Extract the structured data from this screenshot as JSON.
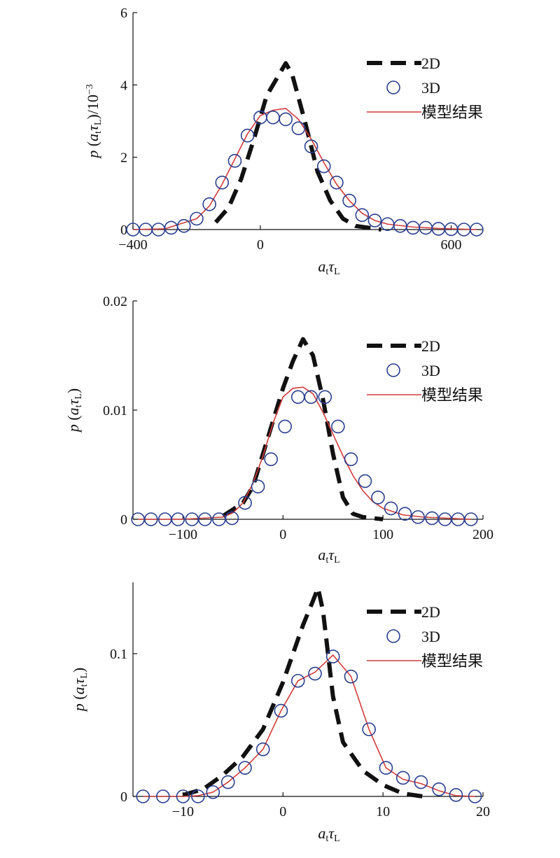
{
  "chart_data": [
    {
      "type": "line",
      "title": "",
      "xlabel": "a_t τ_L",
      "ylabel": "p (a_t τ_L)/10^-3",
      "xlim": [
        -400,
        700
      ],
      "ylim": [
        0,
        6
      ],
      "xticks": [
        -400,
        0,
        600
      ],
      "xtick_labels": [
        "−400",
        "0",
        "600"
      ],
      "yticks": [
        0,
        2,
        4,
        6
      ],
      "ytick_labels": [
        "0",
        "2",
        "4",
        "6"
      ],
      "legend_position": "top-right",
      "series": [
        {
          "name": "2D",
          "style": "dashed",
          "color": "#111111",
          "x": [
            -140,
            -100,
            -60,
            -20,
            20,
            60,
            80,
            100,
            140,
            180,
            220,
            260,
            300,
            340,
            380
          ],
          "y": [
            0.2,
            0.6,
            1.4,
            2.5,
            3.7,
            4.3,
            4.6,
            4.3,
            3.0,
            1.6,
            0.8,
            0.3,
            0.1,
            0.05,
            0.0
          ]
        },
        {
          "name": "3D",
          "style": "circles",
          "color": "#2a3f8f",
          "x": [
            -400,
            -360,
            -320,
            -280,
            -240,
            -200,
            -160,
            -120,
            -80,
            -40,
            0,
            40,
            80,
            120,
            160,
            200,
            240,
            280,
            320,
            360,
            400,
            440,
            480,
            520,
            560,
            600,
            640,
            680
          ],
          "y": [
            0,
            0,
            0,
            0.05,
            0.1,
            0.3,
            0.7,
            1.3,
            1.9,
            2.6,
            3.1,
            3.1,
            3.05,
            2.8,
            2.3,
            1.75,
            1.3,
            0.8,
            0.4,
            0.25,
            0.15,
            0.1,
            0.05,
            0.05,
            0.02,
            0.01,
            0,
            0
          ]
        },
        {
          "name": "模型结果",
          "style": "solid",
          "color": "#d23a3a",
          "x": [
            -400,
            -300,
            -200,
            -160,
            -120,
            -80,
            -40,
            0,
            40,
            80,
            120,
            160,
            200,
            240,
            280,
            320,
            360,
            400,
            480,
            560,
            680
          ],
          "y": [
            0,
            0.02,
            0.3,
            0.65,
            1.25,
            1.95,
            2.65,
            3.15,
            3.3,
            3.35,
            3.05,
            2.5,
            1.85,
            1.25,
            0.8,
            0.45,
            0.25,
            0.15,
            0.07,
            0.03,
            0.0
          ]
        }
      ]
    },
    {
      "type": "line",
      "title": "",
      "xlabel": "a_t τ_L",
      "ylabel": "p (a_t τ_L)",
      "xlim": [
        -150,
        200
      ],
      "ylim": [
        0,
        0.02
      ],
      "xticks": [
        -100,
        0,
        100,
        200
      ],
      "xtick_labels": [
        "−100",
        "0",
        "100",
        "200"
      ],
      "yticks": [
        0,
        0.01,
        0.02
      ],
      "ytick_labels": [
        "0",
        "0.01",
        "0.02"
      ],
      "legend_position": "top-right",
      "series": [
        {
          "name": "2D",
          "style": "dashed",
          "color": "#111111",
          "x": [
            -60,
            -40,
            -30,
            -20,
            -10,
            0,
            10,
            20,
            30,
            40,
            50,
            60,
            70,
            80,
            90,
            100
          ],
          "y": [
            0.0003,
            0.0015,
            0.003,
            0.006,
            0.009,
            0.012,
            0.0145,
            0.0165,
            0.015,
            0.011,
            0.006,
            0.002,
            0.0005,
            0.0002,
            0.0001,
            0.0
          ]
        },
        {
          "name": "3D",
          "style": "circles",
          "color": "#2a3f8f",
          "x": [
            -145,
            -132,
            -118,
            -105,
            -91,
            -78,
            -64,
            -51,
            -38,
            -25,
            -12,
            2,
            15,
            28,
            42,
            55,
            68,
            82,
            95,
            108,
            122,
            135,
            149,
            162,
            175,
            188
          ],
          "y": [
            0,
            0,
            0,
            0,
            0,
            0,
            0,
            0.0001,
            0.0015,
            0.003,
            0.0055,
            0.0085,
            0.0112,
            0.0112,
            0.0112,
            0.0085,
            0.0055,
            0.0035,
            0.002,
            0.001,
            0.0005,
            0.0002,
            0.0001,
            0,
            0,
            0
          ]
        },
        {
          "name": "模型结果",
          "style": "solid",
          "color": "#d23a3a",
          "x": [
            -145,
            -100,
            -60,
            -50,
            -40,
            -30,
            -20,
            -10,
            0,
            10,
            20,
            30,
            40,
            50,
            60,
            70,
            80,
            90,
            100,
            120,
            140,
            188
          ],
          "y": [
            0,
            0,
            0.0002,
            0.0006,
            0.0015,
            0.0033,
            0.0058,
            0.0088,
            0.0112,
            0.012,
            0.0121,
            0.0115,
            0.0098,
            0.0078,
            0.0058,
            0.004,
            0.0026,
            0.0016,
            0.001,
            0.0004,
            0.0002,
            0.0
          ]
        }
      ]
    },
    {
      "type": "line",
      "title": "",
      "xlabel": "a_t τ_L",
      "ylabel": "p (a_t τ_L)",
      "xlim": [
        -15,
        20
      ],
      "ylim": [
        0,
        0.15
      ],
      "xticks": [
        -10,
        0,
        10,
        20
      ],
      "xtick_labels": [
        "−10",
        "0",
        "10",
        "20"
      ],
      "yticks": [
        0,
        0.1
      ],
      "ytick_labels": [
        "0",
        "0.1"
      ],
      "legend_position": "top-right",
      "series": [
        {
          "name": "2D",
          "style": "dashed",
          "color": "#111111",
          "x": [
            -10,
            -8,
            -6,
            -4,
            -2,
            0,
            1,
            2,
            3,
            3.5,
            4,
            5,
            6,
            8,
            10,
            12,
            14
          ],
          "y": [
            0.001,
            0.005,
            0.015,
            0.028,
            0.047,
            0.08,
            0.1,
            0.12,
            0.137,
            0.146,
            0.13,
            0.07,
            0.038,
            0.018,
            0.008,
            0.002,
            0.0
          ]
        },
        {
          "name": "3D",
          "style": "circles",
          "color": "#2a3f8f",
          "x": [
            -14,
            -12,
            -10,
            -8.5,
            -7,
            -5.5,
            -3.8,
            -2,
            -0.2,
            1.5,
            3.2,
            5,
            6.8,
            8.6,
            10.3,
            12,
            13.8,
            15.6,
            17.3,
            19.2
          ],
          "y": [
            0,
            0,
            0,
            0,
            0.003,
            0.01,
            0.02,
            0.033,
            0.06,
            0.081,
            0.086,
            0.098,
            0.084,
            0.047,
            0.02,
            0.013,
            0.01,
            0.005,
            0.001,
            0
          ]
        },
        {
          "name": "模型结果",
          "style": "solid",
          "color": "#d23a3a",
          "x": [
            -14,
            -10,
            -8.5,
            -7,
            -5.5,
            -3.8,
            -2,
            -0.2,
            1.5,
            3.2,
            5,
            6.8,
            8.6,
            10.3,
            12,
            13.8,
            15.6,
            17.3,
            19.2
          ],
          "y": [
            0,
            0,
            0.0005,
            0.003,
            0.01,
            0.02,
            0.033,
            0.06,
            0.081,
            0.087,
            0.099,
            0.084,
            0.047,
            0.02,
            0.012,
            0.009,
            0.004,
            0.0005,
            0
          ]
        }
      ]
    }
  ]
}
